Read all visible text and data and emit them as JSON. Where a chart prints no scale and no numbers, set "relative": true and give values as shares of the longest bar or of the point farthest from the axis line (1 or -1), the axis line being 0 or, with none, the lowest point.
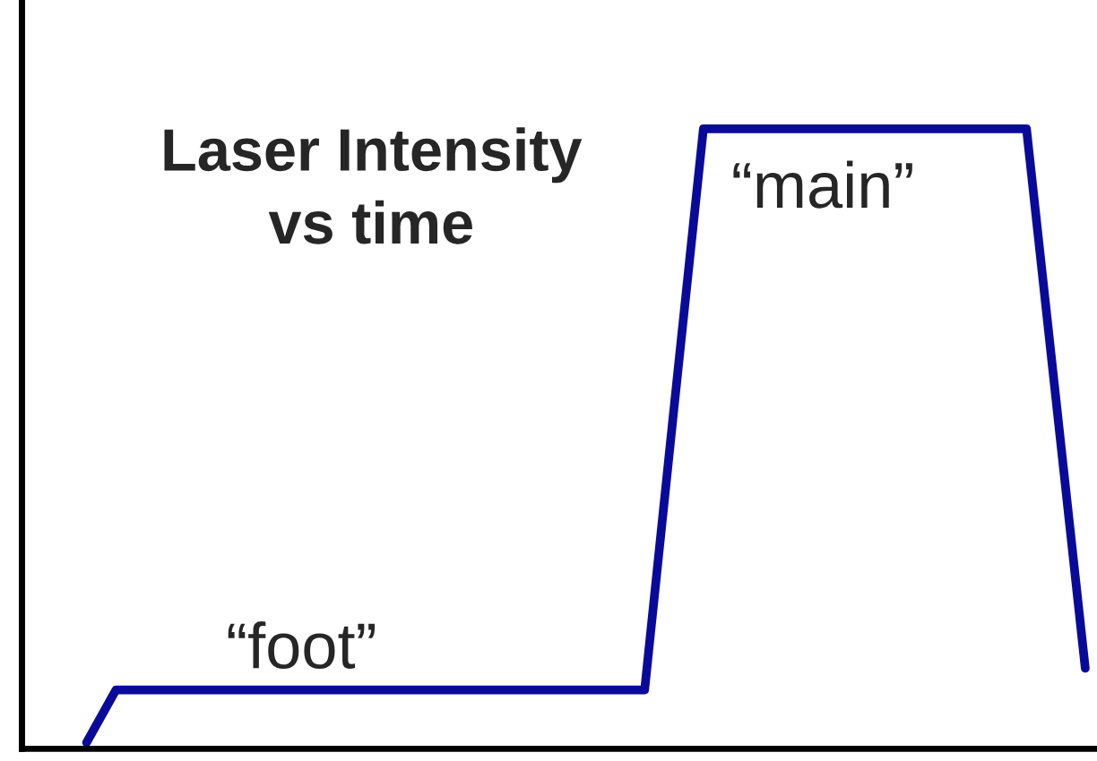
{
  "chart_data": {
    "type": "line",
    "title": "Laser Intensity\nvs time",
    "relative": true,
    "categories": [
      null,
      null,
      null,
      null,
      null,
      null,
      null,
      null,
      null,
      null,
      null,
      null,
      null,
      null,
      null,
      null,
      null,
      null,
      null,
      null,
      null,
      null,
      null,
      null,
      null,
      null,
      null,
      null,
      null,
      null,
      null,
      null,
      null,
      null,
      null
    ],
    "series": [
      {
        "color": "#0a0a9a",
        "values": [
          0.01,
          0.095,
          0.095,
          0.095,
          0.095,
          0.095,
          0.095,
          0.095,
          0.095,
          0.095,
          0.095,
          0.095,
          0.095,
          0.095,
          0.095,
          0.095,
          0.095,
          0.095,
          0.095,
          0.095,
          0.55,
          1,
          1,
          1,
          1,
          1,
          1,
          1,
          1,
          1,
          1,
          1,
          1,
          0.565,
          0.13
        ]
      }
    ],
    "annotations": [
      "“foot”",
      "“main”"
    ],
    "grid": false,
    "legend": false,
    "marker": "none",
    "line_style": "solid"
  }
}
